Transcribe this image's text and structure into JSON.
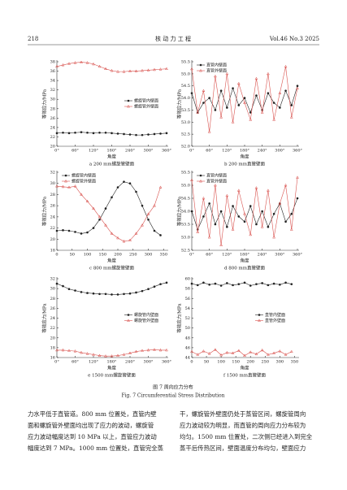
{
  "header": {
    "page": "218",
    "journal": "核 动 力 工 程",
    "volume": "Vol.46 No.3 2025"
  },
  "chart_data": [
    {
      "type": "line",
      "subtitle": "a 200 mm螺旋管壁面",
      "x_label": "角度",
      "y_label": "等效应力/MPa",
      "legend": "center right",
      "xlim": [
        0,
        360
      ],
      "xticks": [
        {
          "value": 0,
          "label": "0°"
        },
        {
          "value": 60,
          "label": "60°"
        },
        {
          "value": 120,
          "label": "120°"
        },
        {
          "value": 180,
          "label": "180°"
        },
        {
          "value": 240,
          "label": "240°"
        },
        {
          "value": 300,
          "label": "300°"
        },
        {
          "value": 360,
          "label": "360°"
        }
      ],
      "ylim": [
        20,
        38
      ],
      "yticks": [
        20,
        22,
        24,
        26,
        28,
        30,
        32,
        34,
        36,
        38
      ],
      "x": [
        0,
        20,
        40,
        60,
        80,
        100,
        120,
        140,
        160,
        180,
        200,
        220,
        240,
        260,
        280,
        300,
        320,
        340,
        360
      ],
      "series": [
        {
          "name": "螺旋管内壁面",
          "color": "#222222",
          "marker": "circle",
          "values": [
            22.8,
            22.9,
            22.8,
            22.9,
            23.0,
            22.9,
            22.8,
            22.9,
            22.9,
            22.8,
            22.7,
            22.6,
            22.5,
            22.4,
            22.4,
            22.5,
            22.6,
            22.7,
            22.8
          ]
        },
        {
          "name": "螺旋管外壁面",
          "color": "#d9534f",
          "marker": "triangle",
          "values": [
            37.0,
            37.3,
            37.6,
            37.8,
            37.9,
            37.8,
            37.5,
            37.0,
            36.5,
            36.1,
            35.9,
            35.9,
            36.0,
            36.0,
            36.1,
            36.2,
            36.3,
            36.4,
            36.5
          ]
        }
      ]
    },
    {
      "type": "line",
      "subtitle": "b 200 mm直管壁面",
      "x_label": "角度",
      "y_label": "等效应力/MPa",
      "legend": "upper left",
      "xlim": [
        0,
        360
      ],
      "xticks": [
        {
          "value": 0,
          "label": "0°"
        },
        {
          "value": 60,
          "label": "60°"
        },
        {
          "value": 120,
          "label": "120°"
        },
        {
          "value": 180,
          "label": "180°"
        },
        {
          "value": 240,
          "label": "240°"
        },
        {
          "value": 300,
          "label": "300°"
        },
        {
          "value": 360,
          "label": "360°"
        }
      ],
      "ylim": [
        52,
        55.5
      ],
      "yticks": [
        {
          "value": 52,
          "label": "52.0"
        },
        52.5,
        {
          "value": 53,
          "label": "53.0"
        },
        53.5,
        {
          "value": 54,
          "label": "54.0"
        },
        54.5,
        {
          "value": 55,
          "label": "55.0"
        },
        55.5
      ],
      "x": [
        0,
        20,
        40,
        60,
        80,
        100,
        120,
        140,
        160,
        180,
        200,
        220,
        240,
        260,
        280,
        300,
        320,
        340,
        360
      ],
      "series": [
        {
          "name": "直管内壁面",
          "color": "#222222",
          "marker": "circle",
          "values": [
            54.2,
            53.4,
            53.8,
            54.0,
            53.5,
            54.3,
            53.6,
            54.4,
            53.7,
            54.0,
            53.4,
            54.1,
            53.5,
            54.2,
            53.8,
            53.6,
            54.3,
            53.7,
            54.5
          ]
        },
        {
          "name": "直管外壁面",
          "color": "#d9534f",
          "marker": "triangle",
          "values": [
            55.2,
            53.4,
            54.3,
            52.6,
            54.9,
            53.2,
            55.0,
            53.0,
            54.6,
            53.8,
            53.1,
            54.8,
            53.4,
            55.0,
            53.1,
            54.2,
            55.3,
            53.2,
            54.4
          ]
        }
      ]
    },
    {
      "type": "line",
      "subtitle": "c 800 mm螺旋管壁面",
      "x_label": "角度",
      "y_label": "等效应力/MPa",
      "legend": "upper left",
      "xlim": [
        0,
        360
      ],
      "xticks": [
        0,
        50,
        100,
        150,
        200,
        250,
        300,
        350
      ],
      "ylim": [
        18,
        32
      ],
      "yticks": [
        18,
        20,
        22,
        24,
        26,
        28,
        30,
        32
      ],
      "x": [
        0,
        20,
        40,
        60,
        80,
        100,
        120,
        140,
        160,
        180,
        200,
        220,
        240,
        260,
        280,
        300,
        320,
        340
      ],
      "series": [
        {
          "name": "螺旋管内壁面",
          "color": "#222222",
          "marker": "circle",
          "values": [
            21.5,
            21.6,
            21.5,
            21.3,
            21.0,
            21.2,
            22.0,
            23.5,
            25.5,
            27.5,
            29.3,
            30.3,
            30.0,
            28.5,
            26.0,
            23.5,
            21.5,
            20.7
          ]
        },
        {
          "name": "螺旋管外壁面",
          "color": "#d9534f",
          "marker": "triangle",
          "values": [
            29.5,
            29.4,
            29.3,
            29.5,
            28.0,
            26.8,
            25.5,
            24.0,
            22.5,
            21.0,
            20.2,
            19.6,
            19.8,
            21.0,
            22.5,
            24.5,
            26.0,
            29.3
          ]
        }
      ]
    },
    {
      "type": "line",
      "subtitle": "d 800 mm直管壁面",
      "x_label": "角度",
      "y_label": "等效应力/MPa",
      "legend": "upper left",
      "xlim": [
        0,
        360
      ],
      "xticks": [
        {
          "value": 0,
          "label": "0°"
        },
        {
          "value": 60,
          "label": "60°"
        },
        {
          "value": 120,
          "label": "120°"
        },
        {
          "value": 180,
          "label": "180°"
        },
        {
          "value": 240,
          "label": "240°"
        },
        {
          "value": 300,
          "label": "300°"
        },
        {
          "value": 360,
          "label": "360°"
        }
      ],
      "ylim": [
        52.5,
        55.5
      ],
      "yticks": [
        52.5,
        {
          "value": 53,
          "label": "53.0"
        },
        53.5,
        {
          "value": 54,
          "label": "54.0"
        },
        54.5,
        {
          "value": 55,
          "label": "55.0"
        },
        55.5
      ],
      "x": [
        0,
        20,
        40,
        60,
        80,
        100,
        120,
        140,
        160,
        180,
        200,
        220,
        240,
        260,
        280,
        300,
        320,
        340,
        360
      ],
      "series": [
        {
          "name": "直管内壁面",
          "color": "#222222",
          "marker": "circle",
          "values": [
            54.0,
            53.3,
            53.8,
            54.3,
            53.5,
            54.0,
            53.4,
            54.2,
            53.8,
            53.6,
            54.2,
            53.5,
            54.0,
            53.4,
            53.9,
            54.3,
            53.6,
            53.9,
            54.5
          ]
        },
        {
          "name": "直管外壁面",
          "color": "#d9534f",
          "marker": "triangle",
          "values": [
            55.2,
            53.2,
            54.5,
            53.0,
            55.0,
            52.7,
            54.6,
            53.3,
            54.8,
            53.9,
            53.1,
            54.9,
            53.4,
            54.8,
            53.0,
            54.3,
            55.0,
            53.3,
            55.3
          ]
        }
      ]
    },
    {
      "type": "line",
      "subtitle": "e 1500 mm螺旋管壁面",
      "x_label": "角度",
      "y_label": "等效应力/MPa",
      "legend": "center right",
      "xlim": [
        0,
        360
      ],
      "xticks": [
        {
          "value": 0,
          "label": "0°"
        },
        {
          "value": 60,
          "label": "60°"
        },
        {
          "value": 120,
          "label": "120°"
        },
        {
          "value": 180,
          "label": "180°"
        },
        {
          "value": 240,
          "label": "240°"
        },
        {
          "value": 300,
          "label": "300°"
        },
        {
          "value": 360,
          "label": "360°"
        }
      ],
      "ylim": [
        16,
        32
      ],
      "yticks": [
        16,
        18,
        20,
        22,
        24,
        26,
        28,
        30,
        32
      ],
      "x": [
        0,
        20,
        40,
        60,
        80,
        100,
        120,
        140,
        160,
        180,
        200,
        220,
        240,
        260,
        280,
        300,
        320,
        340,
        360
      ],
      "series": [
        {
          "name": "螺旋管内壁面",
          "color": "#222222",
          "marker": "circle",
          "values": [
            31.0,
            30.5,
            29.9,
            29.6,
            29.3,
            29.1,
            29.0,
            28.9,
            28.9,
            28.8,
            28.8,
            28.9,
            29.0,
            29.2,
            29.5,
            29.9,
            30.4,
            30.9,
            31.2
          ]
        },
        {
          "name": "螺旋管外壁面",
          "color": "#d9534f",
          "marker": "triangle",
          "values": [
            17.5,
            17.5,
            17.4,
            17.3,
            17.0,
            16.8,
            16.6,
            16.4,
            16.3,
            16.3,
            16.4,
            16.6,
            16.9,
            17.2,
            17.4,
            17.5,
            17.6,
            17.5,
            17.5
          ]
        }
      ]
    },
    {
      "type": "line",
      "subtitle": "f 1500 mm直管壁面",
      "x_label": "角度",
      "y_label": "等效应力/MPa",
      "legend": "center right",
      "xlim": [
        0,
        360
      ],
      "xticks": [
        0,
        50,
        100,
        150,
        200,
        250,
        300,
        350
      ],
      "ylim": [
        44,
        60
      ],
      "yticks": [
        44,
        46,
        48,
        50,
        52,
        54,
        56,
        58,
        60
      ],
      "x": [
        0,
        20,
        40,
        60,
        80,
        100,
        120,
        140,
        160,
        180,
        200,
        220,
        240,
        260,
        280,
        300,
        320,
        340
      ],
      "series": [
        {
          "name": "直管内壁面",
          "color": "#222222",
          "marker": "circle",
          "values": [
            59.0,
            58.7,
            59.2,
            58.8,
            59.0,
            58.6,
            59.1,
            58.7,
            58.9,
            59.2,
            58.6,
            58.9,
            59.1,
            58.7,
            59.0,
            58.8,
            59.2,
            58.9
          ]
        },
        {
          "name": "直管外壁面",
          "color": "#d9534f",
          "marker": "triangle",
          "values": [
            45.2,
            44.6,
            45.3,
            44.8,
            45.6,
            44.5,
            45.0,
            44.9,
            45.4,
            44.4,
            45.1,
            44.7,
            45.5,
            44.6,
            44.9,
            45.3,
            44.6,
            45.2
          ]
        }
      ]
    }
  ],
  "figure": {
    "caption": "图 7 周向应力分布",
    "caption_en": "Fig. 7 Circumferential Stress Distribution"
  },
  "body": {
    "left": [
      "力水平低于直管道。800 mm 位置处，直管内壁",
      "面和螺旋管外壁面均出现了应力的波动，螺旋管",
      "应力波动幅度达到 10 MPa 以上，直管应力波动",
      "幅度达到 7 MPa。1000 mm 位置处，直管完全蒸"
    ],
    "right": [
      "干，螺旋管外壁面仍处于蒸管区间，螺旋管周向",
      "应力波动较为明显，而直管的周向应力分布较为",
      "均匀。1500 mm 位置处，二次侧已经进入到完全",
      "蒸干后传热区间，壁面温度分布均匀，壁面应力"
    ]
  }
}
